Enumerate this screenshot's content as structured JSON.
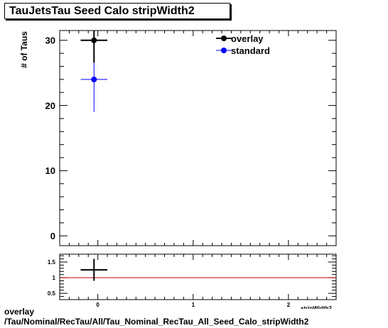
{
  "title": "TauJetsTau Seed Calo stripWidth2",
  "footer": {
    "line1": "overlay",
    "line2": "/Tau/Nominal/RecTau/All/Tau_Nominal_RecTau_All_Seed_Calo_stripWidth2"
  },
  "colors": {
    "overlay": "#000000",
    "standard": "#0000ff",
    "ratio_line": "#cc0000"
  },
  "chart_data": [
    {
      "type": "scatter",
      "title": "TauJetsTau Seed Calo stripWidth2",
      "ylabel": "# of Taus",
      "xlim": [
        -0.4,
        2.5
      ],
      "ylim": [
        -1.5,
        31.5
      ],
      "y_ticks": [
        0,
        10,
        20,
        30
      ],
      "legend_placement": "top-right",
      "series": [
        {
          "name": "overlay",
          "color": "#000000",
          "points": [
            {
              "x": -0.04,
              "y": 30,
              "xerr": 0.14,
              "yerr_low": 3.4,
              "yerr_high": 3.0
            }
          ]
        },
        {
          "name": "standard",
          "color": "#0000ff",
          "points": [
            {
              "x": -0.04,
              "y": 24,
              "xerr": 0.14,
              "yerr_low": 5.0,
              "yerr_high": 5.0
            }
          ]
        }
      ]
    },
    {
      "type": "scatter",
      "xlabel": "stripWidth2",
      "xlim": [
        -0.4,
        2.5
      ],
      "ylim": [
        0.3,
        1.75
      ],
      "x_ticks": [
        0,
        1,
        2
      ],
      "y_ticks": [
        0.5,
        1,
        1.5
      ],
      "y_tick_labels": [
        "0.5",
        "1",
        "1.5"
      ],
      "reference_line": 1,
      "series": [
        {
          "color": "#000000",
          "points": [
            {
              "x": -0.04,
              "y": 1.25,
              "xerr": 0.14,
              "yerr_low": 0.35,
              "yerr_high": 0.35
            }
          ]
        }
      ]
    }
  ]
}
